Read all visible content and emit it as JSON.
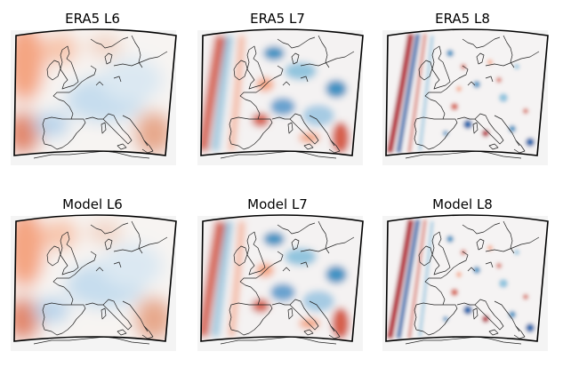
{
  "panels": [
    {
      "title": "ERA5 L6",
      "style": "smooth"
    },
    {
      "title": "ERA5 L7",
      "style": "medium"
    },
    {
      "title": "ERA5 L8",
      "style": "fine"
    },
    {
      "title": "Model L6",
      "style": "smooth"
    },
    {
      "title": "Model L7",
      "style": "medium"
    },
    {
      "title": "Model L8",
      "style": "fine"
    }
  ],
  "colors": {
    "positive": "#b2182b",
    "positive_light": "#ef8a62",
    "negative": "#2166ac",
    "negative_light": "#92c5de",
    "neutral": "#f7f7f7",
    "frame": "#000000",
    "coastline": "#222222"
  }
}
